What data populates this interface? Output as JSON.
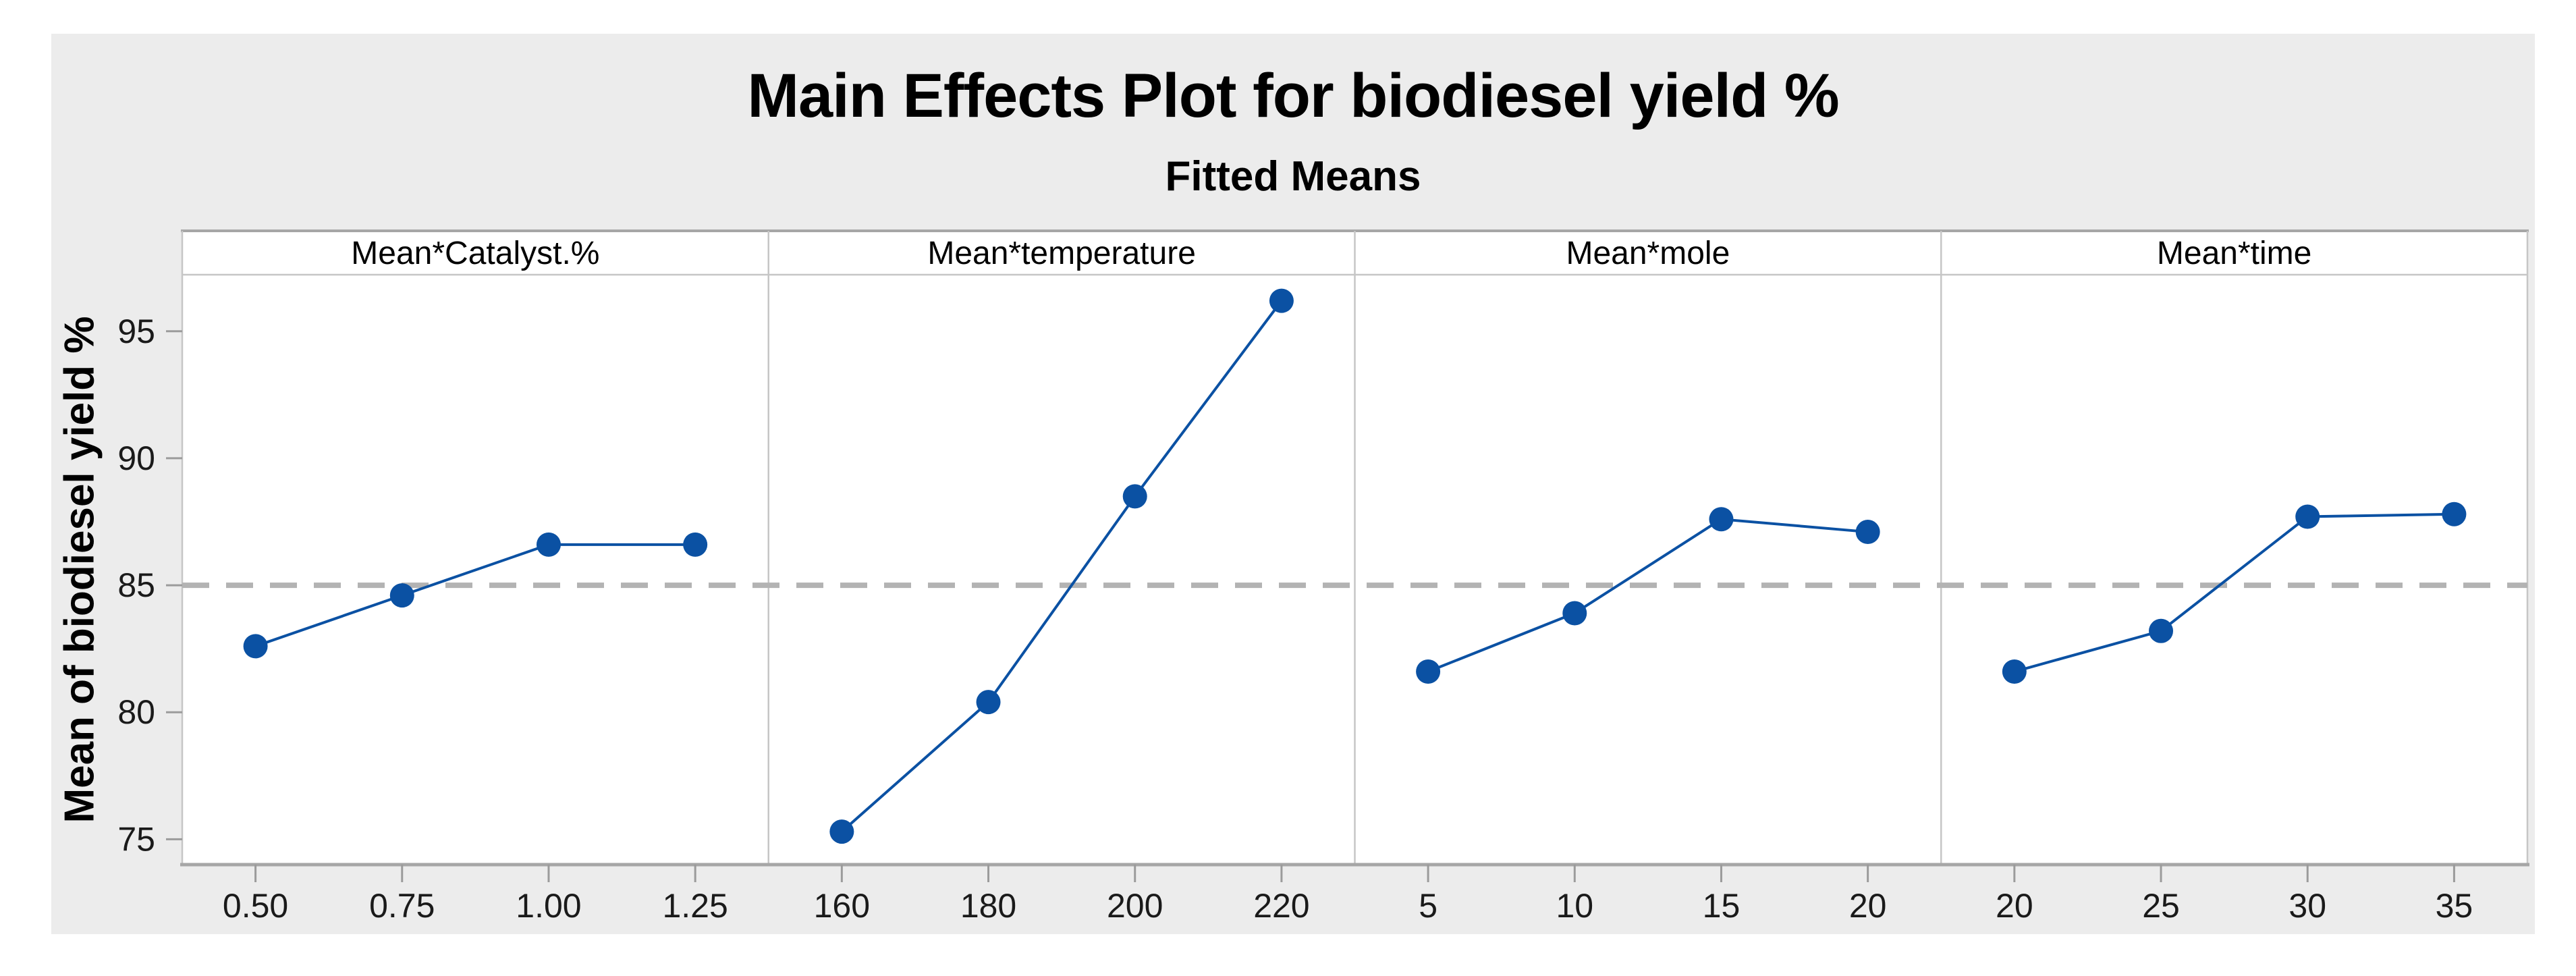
{
  "header": {
    "title": "Main Effects Plot for biodiesel yield %",
    "subtitle": "Fitted Means"
  },
  "chart_data": {
    "type": "line",
    "title": "Main Effects Plot for biodiesel yield %",
    "subtitle": "Fitted Means",
    "ylabel": "Mean of biodiesel yield %",
    "ylim": [
      74,
      97.2
    ],
    "yticks": [
      "75",
      "80",
      "85",
      "90",
      "95"
    ],
    "reference_line": 85,
    "grid": false,
    "legend": "none",
    "panels": [
      {
        "header": "Mean*Catalyst.%",
        "x_labels": [
          "0.50",
          "0.75",
          "1.00",
          "1.25"
        ],
        "values": [
          82.6,
          84.6,
          86.6,
          86.6
        ]
      },
      {
        "header": "Mean*temperature",
        "x_labels": [
          "160",
          "180",
          "200",
          "220"
        ],
        "values": [
          75.3,
          80.4,
          88.5,
          96.2
        ]
      },
      {
        "header": "Mean*mole",
        "x_labels": [
          "5",
          "10",
          "15",
          "20"
        ],
        "values": [
          81.6,
          83.9,
          87.6,
          87.1
        ]
      },
      {
        "header": "Mean*time",
        "x_labels": [
          "20",
          "25",
          "30",
          "35"
        ],
        "values": [
          81.6,
          83.2,
          87.7,
          87.8
        ]
      }
    ],
    "colors": {
      "series": "#0b51a3",
      "reference_line": "#b3b3b3",
      "outer_background": "#ececec",
      "plot_background": "#ffffff",
      "frame": "#c6c6c6",
      "axis_line": "#a6a6a6",
      "tick": "#9b9b9b",
      "text": "#1a1a1a"
    }
  }
}
